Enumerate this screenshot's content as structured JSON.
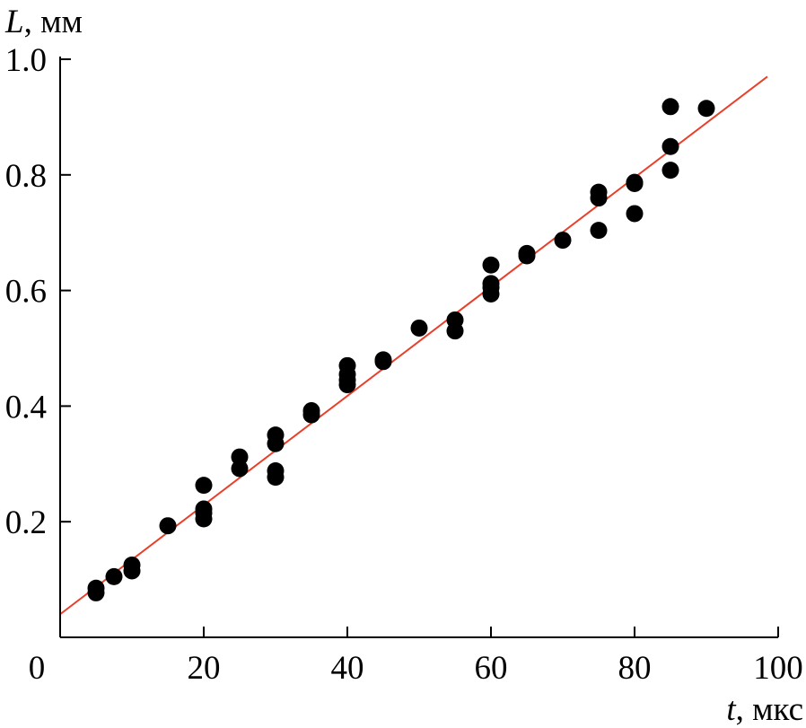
{
  "chart_data": {
    "type": "scatter",
    "title": "",
    "xlabel_var": "t",
    "xlabel_unit": ", мкс",
    "ylabel_var": "L",
    "ylabel_unit": ", мм",
    "xlim": [
      0,
      100
    ],
    "ylim": [
      0,
      1.0
    ],
    "x_ticks": [
      0,
      20,
      40,
      60,
      80,
      100
    ],
    "x_tick_labels": [
      "0",
      "20",
      "40",
      "60",
      "80",
      "100"
    ],
    "y_ticks": [
      0.2,
      0.4,
      0.6,
      0.8,
      1.0
    ],
    "y_tick_labels": [
      "0.2",
      "0.4",
      "0.6",
      "0.8",
      "1.0"
    ],
    "grid": false,
    "point_color": "#000000",
    "fit_color": "#e8402a",
    "series": [
      {
        "x": [
          5,
          5,
          7.5,
          10,
          10,
          15,
          20,
          20,
          20,
          20,
          25,
          25,
          30,
          30,
          30,
          30,
          35,
          35,
          40,
          40,
          40,
          40,
          45,
          45,
          50,
          55,
          55,
          60,
          60,
          60,
          60,
          65,
          65,
          70,
          75,
          75,
          75,
          80,
          80,
          80,
          85,
          85,
          85,
          90
        ],
        "y": [
          0.085,
          0.077,
          0.105,
          0.115,
          0.125,
          0.193,
          0.263,
          0.222,
          0.215,
          0.205,
          0.312,
          0.292,
          0.35,
          0.335,
          0.288,
          0.277,
          0.392,
          0.385,
          0.47,
          0.455,
          0.445,
          0.437,
          0.48,
          0.477,
          0.535,
          0.549,
          0.53,
          0.644,
          0.612,
          0.605,
          0.594,
          0.664,
          0.66,
          0.687,
          0.77,
          0.76,
          0.704,
          0.787,
          0.785,
          0.733,
          0.918,
          0.849,
          0.808,
          0.915
        ]
      }
    ],
    "fit_line": {
      "x": [
        0,
        98.5
      ],
      "y": [
        0.04,
        0.97
      ]
    }
  }
}
